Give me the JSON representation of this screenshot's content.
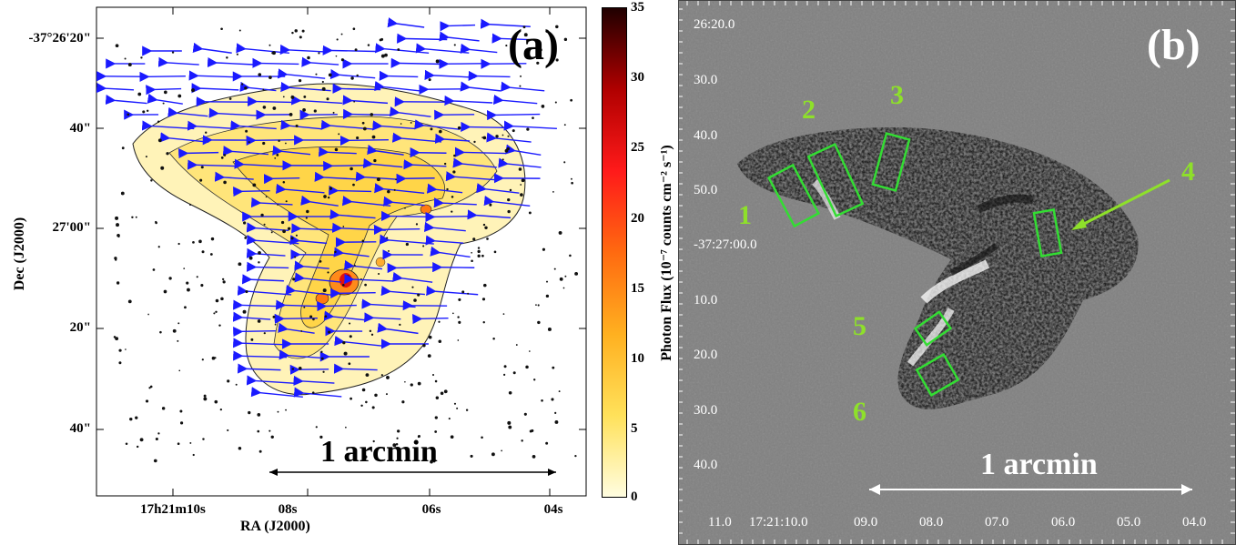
{
  "panel_a": {
    "label": "(a)",
    "xlabel": "RA (J2000)",
    "ylabel": "Dec (J2000)",
    "y_ticks": [
      "-37°26'20\"",
      "40\"",
      "27'00\"",
      "20\"",
      "40\""
    ],
    "x_ticks": [
      "17h21m10s",
      "08s",
      "06s",
      "04s"
    ],
    "scale_bar": "1 arcmin",
    "colorbar": {
      "label": "Photon Flux (10⁻⁷ counts cm⁻² s⁻¹)",
      "ticks": [
        "35",
        "30",
        "25",
        "20",
        "15",
        "10",
        "5",
        "0"
      ],
      "range": [
        0,
        35
      ],
      "colors": [
        "#fffde0",
        "#ffe15a",
        "#ffb020",
        "#ff6a10",
        "#ff1a1a",
        "#b00000",
        "#200000"
      ]
    },
    "vector_color": "#1a1aff"
  },
  "panel_b": {
    "label": "(b)",
    "y_ticks": [
      "26:20.0",
      "30.0",
      "40.0",
      "50.0",
      "-37:27:00.0",
      "10.0",
      "20.0",
      "30.0",
      "40.0"
    ],
    "x_ticks": [
      "11.0",
      "17:21:10.0",
      "09.0",
      "08.0",
      "07.0",
      "06.0",
      "05.0",
      "04.0"
    ],
    "scale_bar": "1 arcmin",
    "regions": [
      "1",
      "2",
      "3",
      "4",
      "5",
      "6"
    ],
    "region_color": "#33dd33",
    "label_color": "#8ee02a"
  }
}
